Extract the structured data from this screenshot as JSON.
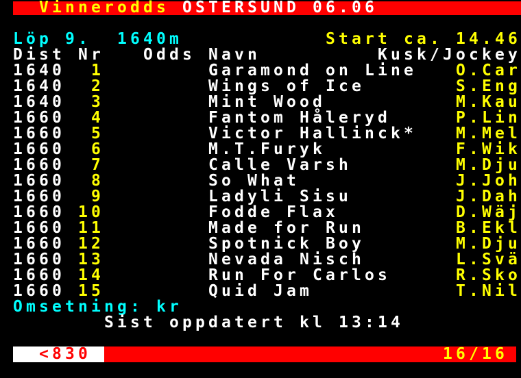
{
  "colors": {
    "background": "#000000",
    "bar_red": "#ff0000",
    "text_white": "#ffffff",
    "text_yellow": "#ffff00",
    "text_cyan": "#00ffff"
  },
  "top_bar": {
    "service_label": "Vinnerodds",
    "track_and_date": "ÖSTERSUND 06.06"
  },
  "race_info": {
    "race_label": "Löp 9.",
    "distance": "1640m",
    "start_time": "Start ca. 14.46"
  },
  "table": {
    "headers": {
      "dist": "Dist",
      "nr": "Nr",
      "odds": "Odds",
      "navn": "Navn",
      "kusk": "Kusk/Jockey"
    },
    "rows": [
      {
        "dist": "1640",
        "nr": "1",
        "name": "Garamond on Line",
        "jockey": "O.Car"
      },
      {
        "dist": "1640",
        "nr": "2",
        "name": "Wings of Ice",
        "jockey": "S.Eng"
      },
      {
        "dist": "1640",
        "nr": "3",
        "name": "Mint Wood",
        "jockey": "M.Kau"
      },
      {
        "dist": "1660",
        "nr": "4",
        "name": "Fantom Håleryd",
        "jockey": "P.Lin"
      },
      {
        "dist": "1660",
        "nr": "5",
        "name": "Victor Hallinck*",
        "jockey": "M.Mel"
      },
      {
        "dist": "1660",
        "nr": "6",
        "name": "M.T.Furyk",
        "jockey": "F.Wik"
      },
      {
        "dist": "1660",
        "nr": "7",
        "name": "Calle Varsh",
        "jockey": "M.Dju"
      },
      {
        "dist": "1660",
        "nr": "8",
        "name": "So What",
        "jockey": "J.Joh"
      },
      {
        "dist": "1660",
        "nr": "9",
        "name": "Ladyli Sisu",
        "jockey": "J.Dah"
      },
      {
        "dist": "1660",
        "nr": "10",
        "name": "Fodde Flax",
        "jockey": "D.Wäj"
      },
      {
        "dist": "1660",
        "nr": "11",
        "name": "Made for Run",
        "jockey": "B.Ekl"
      },
      {
        "dist": "1660",
        "nr": "12",
        "name": "Spotnick Boy",
        "jockey": "M.Dju"
      },
      {
        "dist": "1660",
        "nr": "13",
        "name": "Nevada Nisch",
        "jockey": "L.Svä"
      },
      {
        "dist": "1660",
        "nr": "14",
        "name": "Run For Carlos",
        "jockey": "R.Sko"
      },
      {
        "dist": "1660",
        "nr": "15",
        "name": "Quid Jam",
        "jockey": "T.Nil"
      }
    ]
  },
  "footer": {
    "turnover_label": "Omsetning: kr",
    "last_updated": "Sist oppdatert kl 13:14"
  },
  "bottom_bar": {
    "page_link": "<830",
    "page_indicator": "16/16"
  }
}
